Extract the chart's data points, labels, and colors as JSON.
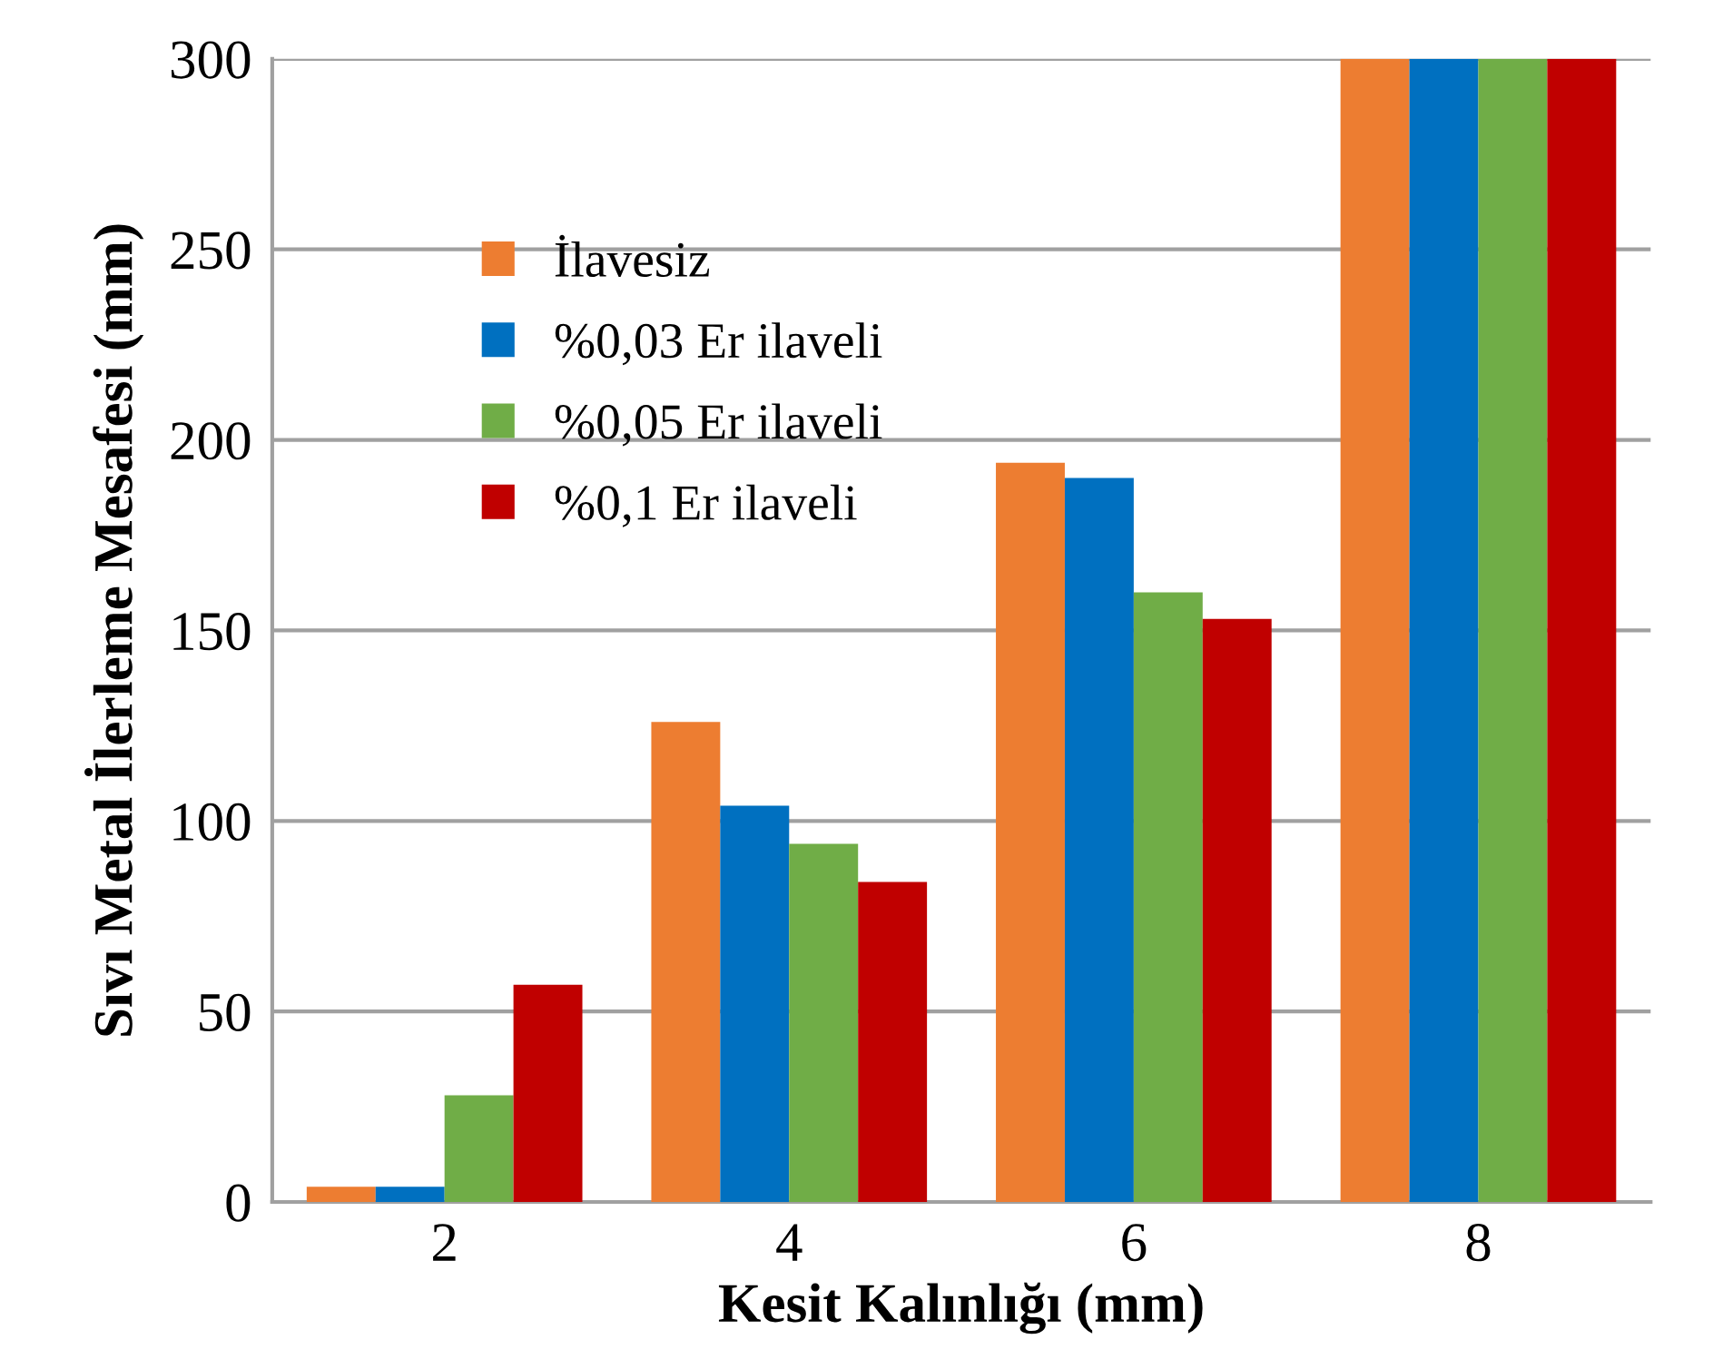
{
  "chart_data": {
    "type": "bar",
    "xlabel": "Kesit Kalınlığı (mm)",
    "ylabel": "Sıvı Metal İlerleme Mesafesi (mm)",
    "categories": [
      "2",
      "4",
      "6",
      "8"
    ],
    "series": [
      {
        "name": "İlavesiz",
        "color": "#ed7d31",
        "values": [
          4,
          126,
          194,
          300
        ]
      },
      {
        "name": "%0,03 Er ilaveli",
        "color": "#0070c0",
        "values": [
          4,
          104,
          190,
          300
        ]
      },
      {
        "name": "%0,05 Er ilaveli",
        "color": "#70ad47",
        "values": [
          28,
          94,
          160,
          300
        ]
      },
      {
        "name": "%0,1 Er ilaveli",
        "color": "#c00000",
        "values": [
          57,
          84,
          153,
          300
        ]
      }
    ],
    "ylim": [
      0,
      300
    ],
    "yticks": [
      0,
      50,
      100,
      150,
      200,
      250,
      300
    ],
    "grid": "y",
    "legend": "top left"
  }
}
